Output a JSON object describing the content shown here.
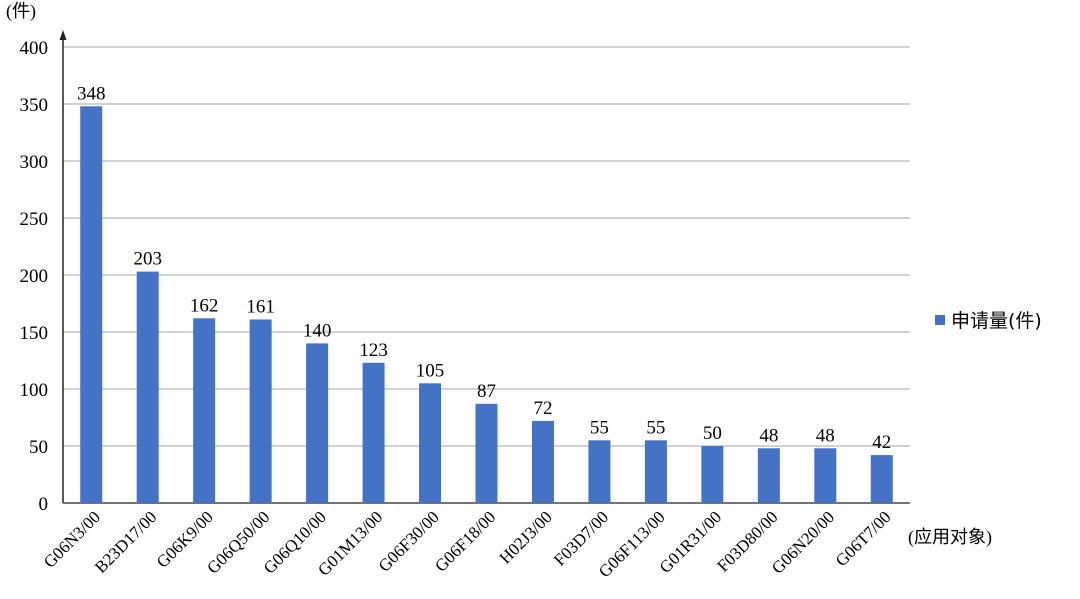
{
  "chart_data": {
    "type": "bar",
    "y_unit_label": "(件)",
    "x_unit_label": "(应用对象)",
    "categories": [
      "G06N3/00",
      "B23D17/00",
      "G06K9/00",
      "G06Q50/00",
      "G06Q10/00",
      "G01M13/00",
      "G06F30/00",
      "G06F18/00",
      "H02J3/00",
      "F03D7/00",
      "G06F113/00",
      "G01R31/00",
      "F03D80/00",
      "G06N20/00",
      "G06T7/00"
    ],
    "series": [
      {
        "name": "申请量(件)",
        "values": [
          348,
          203,
          162,
          161,
          140,
          123,
          105,
          87,
          72,
          55,
          55,
          50,
          48,
          48,
          42
        ]
      }
    ],
    "ylim": [
      0,
      400
    ],
    "yticks": [
      0,
      50,
      100,
      150,
      200,
      250,
      300,
      350,
      400
    ],
    "grid": true,
    "legend_position": "right",
    "colors": {
      "bar": "#4472C4",
      "grid": "#a6a6a6",
      "axis": "#222222"
    }
  }
}
